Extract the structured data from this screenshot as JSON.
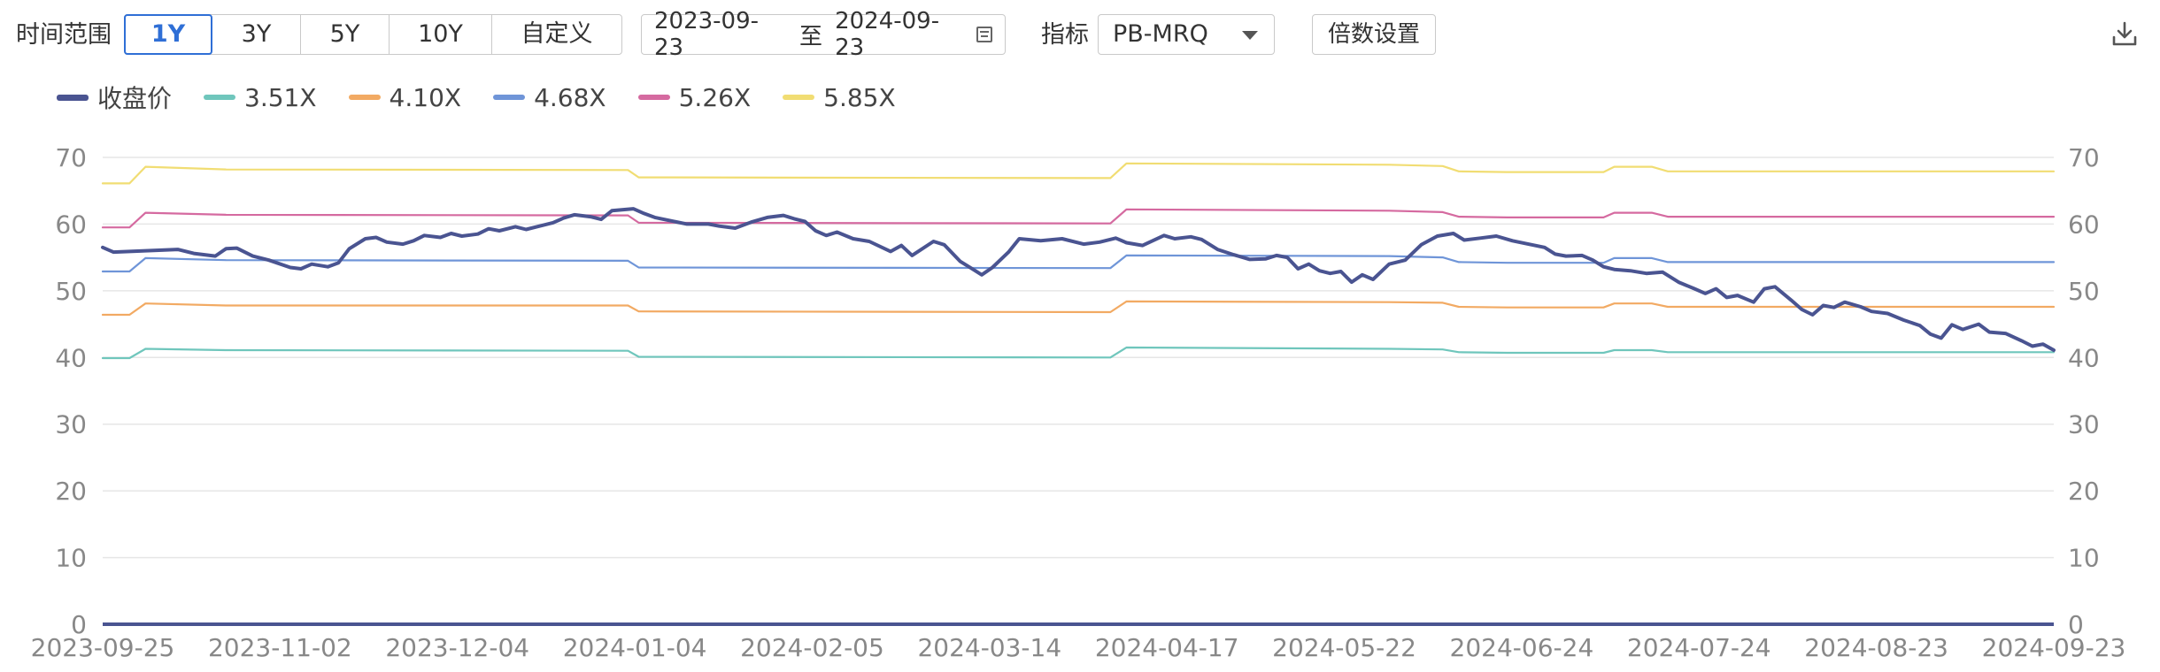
{
  "toolbar": {
    "range_label": "时间范围",
    "ranges": [
      "1Y",
      "3Y",
      "5Y",
      "10Y",
      "自定义"
    ],
    "active_range": "1Y",
    "date_start": "2023-09-23",
    "date_sep": "至",
    "date_end": "2024-09-23",
    "metric_label": "指标",
    "metric_value": "PB-MRQ",
    "multiple_button": "倍数设置"
  },
  "colors": {
    "close": "#4a5491",
    "m351": "#6fc6bc",
    "m410": "#f2aa63",
    "m468": "#6f95d8",
    "m526": "#d56aa0",
    "m585": "#f1dd73",
    "grid": "#e6e6e6",
    "axis": "#4a5491",
    "tick": "#888888"
  },
  "chart_data": {
    "type": "line",
    "x_start": "2023-09-25",
    "x_end": "2024-09-23",
    "x_ticks": [
      "2023-09-25",
      "2023-11-02",
      "2023-12-04",
      "2024-01-04",
      "2024-02-05",
      "2024-03-14",
      "2024-04-17",
      "2024-05-22",
      "2024-06-24",
      "2024-07-24",
      "2024-08-23",
      "2024-09-23"
    ],
    "ylim": [
      0,
      70
    ],
    "y_ticks": [
      0,
      10,
      20,
      30,
      40,
      50,
      60,
      70
    ],
    "legend_position": "top-left",
    "grid": true,
    "series": [
      {
        "name": "收盘价",
        "color_key": "close",
        "width": 4,
        "points": [
          [
            "2023-09-25",
            56.5
          ],
          [
            "2023-09-27",
            55.8
          ],
          [
            "2023-10-09",
            56.2
          ],
          [
            "2023-10-12",
            55.6
          ],
          [
            "2023-10-16",
            55.2
          ],
          [
            "2023-10-18",
            56.3
          ],
          [
            "2023-10-20",
            56.4
          ],
          [
            "2023-10-23",
            55.2
          ],
          [
            "2023-10-26",
            54.6
          ],
          [
            "2023-10-30",
            53.5
          ],
          [
            "2023-11-01",
            53.3
          ],
          [
            "2023-11-03",
            54.0
          ],
          [
            "2023-11-06",
            53.6
          ],
          [
            "2023-11-08",
            54.2
          ],
          [
            "2023-11-10",
            56.3
          ],
          [
            "2023-11-13",
            57.8
          ],
          [
            "2023-11-15",
            58.0
          ],
          [
            "2023-11-17",
            57.3
          ],
          [
            "2023-11-20",
            57.0
          ],
          [
            "2023-11-22",
            57.5
          ],
          [
            "2023-11-24",
            58.3
          ],
          [
            "2023-11-27",
            58.0
          ],
          [
            "2023-11-29",
            58.6
          ],
          [
            "2023-12-01",
            58.2
          ],
          [
            "2023-12-04",
            58.5
          ],
          [
            "2023-12-06",
            59.3
          ],
          [
            "2023-12-08",
            59.0
          ],
          [
            "2023-12-11",
            59.6
          ],
          [
            "2023-12-13",
            59.2
          ],
          [
            "2023-12-15",
            59.6
          ],
          [
            "2023-12-18",
            60.2
          ],
          [
            "2023-12-20",
            60.9
          ],
          [
            "2023-12-22",
            61.4
          ],
          [
            "2023-12-25",
            61.1
          ],
          [
            "2023-12-27",
            60.7
          ],
          [
            "2023-12-29",
            62.0
          ],
          [
            "2024-01-02",
            62.3
          ],
          [
            "2024-01-04",
            61.6
          ],
          [
            "2024-01-06",
            61.0
          ],
          [
            "2024-01-09",
            60.5
          ],
          [
            "2024-01-12",
            60.0
          ],
          [
            "2024-01-16",
            60.0
          ],
          [
            "2024-01-18",
            59.7
          ],
          [
            "2024-01-21",
            59.4
          ],
          [
            "2024-01-24",
            60.3
          ],
          [
            "2024-01-27",
            61.0
          ],
          [
            "2024-01-30",
            61.3
          ],
          [
            "2024-02-01",
            60.8
          ],
          [
            "2024-02-03",
            60.4
          ],
          [
            "2024-02-05",
            59.0
          ],
          [
            "2024-02-07",
            58.3
          ],
          [
            "2024-02-09",
            58.8
          ],
          [
            "2024-02-12",
            57.8
          ],
          [
            "2024-02-15",
            57.4
          ],
          [
            "2024-02-19",
            55.9
          ],
          [
            "2024-02-21",
            56.8
          ],
          [
            "2024-02-23",
            55.3
          ],
          [
            "2024-02-27",
            57.4
          ],
          [
            "2024-02-29",
            56.9
          ],
          [
            "2024-03-03",
            54.4
          ],
          [
            "2024-03-05",
            53.4
          ],
          [
            "2024-03-07",
            52.4
          ],
          [
            "2024-03-09",
            53.5
          ],
          [
            "2024-03-12",
            55.8
          ],
          [
            "2024-03-14",
            57.8
          ],
          [
            "2024-03-18",
            57.5
          ],
          [
            "2024-03-22",
            57.8
          ],
          [
            "2024-03-26",
            57.0
          ],
          [
            "2024-03-29",
            57.3
          ],
          [
            "2024-04-01",
            57.9
          ],
          [
            "2024-04-03",
            57.2
          ],
          [
            "2024-04-06",
            56.8
          ],
          [
            "2024-04-10",
            58.3
          ],
          [
            "2024-04-12",
            57.8
          ],
          [
            "2024-04-15",
            58.1
          ],
          [
            "2024-04-17",
            57.7
          ],
          [
            "2024-04-20",
            56.2
          ],
          [
            "2024-04-23",
            55.4
          ],
          [
            "2024-04-26",
            54.7
          ],
          [
            "2024-04-29",
            54.8
          ],
          [
            "2024-05-01",
            55.3
          ],
          [
            "2024-05-03",
            55.0
          ],
          [
            "2024-05-05",
            53.3
          ],
          [
            "2024-05-07",
            54.0
          ],
          [
            "2024-05-09",
            53.0
          ],
          [
            "2024-05-11",
            52.6
          ],
          [
            "2024-05-13",
            52.9
          ],
          [
            "2024-05-15",
            51.3
          ],
          [
            "2024-05-17",
            52.4
          ],
          [
            "2024-05-19",
            51.7
          ],
          [
            "2024-05-22",
            54.0
          ],
          [
            "2024-05-25",
            54.6
          ],
          [
            "2024-05-28",
            56.9
          ],
          [
            "2024-05-31",
            58.2
          ],
          [
            "2024-06-03",
            58.6
          ],
          [
            "2024-06-05",
            57.6
          ],
          [
            "2024-06-08",
            57.9
          ],
          [
            "2024-06-11",
            58.2
          ],
          [
            "2024-06-14",
            57.5
          ],
          [
            "2024-06-17",
            57.0
          ],
          [
            "2024-06-20",
            56.5
          ],
          [
            "2024-06-22",
            55.5
          ],
          [
            "2024-06-24",
            55.2
          ],
          [
            "2024-06-27",
            55.3
          ],
          [
            "2024-06-29",
            54.6
          ],
          [
            "2024-07-01",
            53.6
          ],
          [
            "2024-07-03",
            53.2
          ],
          [
            "2024-07-06",
            53.0
          ],
          [
            "2024-07-09",
            52.6
          ],
          [
            "2024-07-12",
            52.8
          ],
          [
            "2024-07-15",
            51.3
          ],
          [
            "2024-07-18",
            50.3
          ],
          [
            "2024-07-20",
            49.6
          ],
          [
            "2024-07-22",
            50.3
          ],
          [
            "2024-07-24",
            49.0
          ],
          [
            "2024-07-26",
            49.3
          ],
          [
            "2024-07-29",
            48.3
          ],
          [
            "2024-07-31",
            50.3
          ],
          [
            "2024-08-02",
            50.6
          ],
          [
            "2024-08-05",
            48.6
          ],
          [
            "2024-08-07",
            47.2
          ],
          [
            "2024-08-09",
            46.4
          ],
          [
            "2024-08-11",
            47.8
          ],
          [
            "2024-08-13",
            47.5
          ],
          [
            "2024-08-15",
            48.3
          ],
          [
            "2024-08-18",
            47.6
          ],
          [
            "2024-08-20",
            46.9
          ],
          [
            "2024-08-23",
            46.6
          ],
          [
            "2024-08-26",
            45.6
          ],
          [
            "2024-08-29",
            44.8
          ],
          [
            "2024-08-31",
            43.5
          ],
          [
            "2024-09-02",
            42.9
          ],
          [
            "2024-09-04",
            44.9
          ],
          [
            "2024-09-06",
            44.2
          ],
          [
            "2024-09-09",
            45.0
          ],
          [
            "2024-09-11",
            43.8
          ],
          [
            "2024-09-14",
            43.6
          ],
          [
            "2024-09-17",
            42.5
          ],
          [
            "2024-09-19",
            41.7
          ],
          [
            "2024-09-21",
            42.0
          ],
          [
            "2024-09-23",
            41.1
          ]
        ]
      },
      {
        "name": "3.51X",
        "color_key": "m351",
        "width": 2.2,
        "points": [
          [
            "2023-09-25",
            39.9
          ],
          [
            "2023-09-30",
            39.9
          ],
          [
            "2023-10-03",
            41.3
          ],
          [
            "2023-10-18",
            41.1
          ],
          [
            "2024-01-01",
            41.0
          ],
          [
            "2024-01-03",
            40.1
          ],
          [
            "2024-03-31",
            40.0
          ],
          [
            "2024-04-03",
            41.5
          ],
          [
            "2024-05-22",
            41.3
          ],
          [
            "2024-06-01",
            41.2
          ],
          [
            "2024-06-04",
            40.8
          ],
          [
            "2024-06-13",
            40.7
          ],
          [
            "2024-07-01",
            40.7
          ],
          [
            "2024-07-03",
            41.1
          ],
          [
            "2024-07-10",
            41.1
          ],
          [
            "2024-07-13",
            40.8
          ],
          [
            "2024-09-23",
            40.8
          ]
        ]
      },
      {
        "name": "4.10X",
        "color_key": "m410",
        "width": 2.2,
        "points": [
          [
            "2023-09-25",
            46.4
          ],
          [
            "2023-09-30",
            46.4
          ],
          [
            "2023-10-03",
            48.1
          ],
          [
            "2023-10-18",
            47.8
          ],
          [
            "2024-01-01",
            47.8
          ],
          [
            "2024-01-03",
            46.9
          ],
          [
            "2024-03-31",
            46.8
          ],
          [
            "2024-04-03",
            48.4
          ],
          [
            "2024-05-22",
            48.3
          ],
          [
            "2024-06-01",
            48.2
          ],
          [
            "2024-06-04",
            47.6
          ],
          [
            "2024-06-13",
            47.5
          ],
          [
            "2024-07-01",
            47.5
          ],
          [
            "2024-07-03",
            48.1
          ],
          [
            "2024-07-10",
            48.1
          ],
          [
            "2024-07-13",
            47.6
          ],
          [
            "2024-09-23",
            47.6
          ]
        ]
      },
      {
        "name": "4.68X",
        "color_key": "m468",
        "width": 2.2,
        "points": [
          [
            "2023-09-25",
            52.9
          ],
          [
            "2023-09-30",
            52.9
          ],
          [
            "2023-10-03",
            54.9
          ],
          [
            "2023-10-18",
            54.6
          ],
          [
            "2024-01-01",
            54.5
          ],
          [
            "2024-01-03",
            53.5
          ],
          [
            "2024-03-31",
            53.4
          ],
          [
            "2024-04-03",
            55.3
          ],
          [
            "2024-05-22",
            55.2
          ],
          [
            "2024-06-01",
            55.0
          ],
          [
            "2024-06-04",
            54.3
          ],
          [
            "2024-06-13",
            54.2
          ],
          [
            "2024-07-01",
            54.2
          ],
          [
            "2024-07-03",
            54.9
          ],
          [
            "2024-07-10",
            54.9
          ],
          [
            "2024-07-13",
            54.3
          ],
          [
            "2024-09-23",
            54.3
          ]
        ]
      },
      {
        "name": "5.26X",
        "color_key": "m526",
        "width": 2.2,
        "points": [
          [
            "2023-09-25",
            59.5
          ],
          [
            "2023-09-30",
            59.5
          ],
          [
            "2023-10-03",
            61.7
          ],
          [
            "2023-10-18",
            61.4
          ],
          [
            "2024-01-01",
            61.3
          ],
          [
            "2024-01-03",
            60.2
          ],
          [
            "2024-03-31",
            60.1
          ],
          [
            "2024-04-03",
            62.2
          ],
          [
            "2024-05-22",
            62.0
          ],
          [
            "2024-06-01",
            61.8
          ],
          [
            "2024-06-04",
            61.1
          ],
          [
            "2024-06-13",
            61.0
          ],
          [
            "2024-07-01",
            61.0
          ],
          [
            "2024-07-03",
            61.7
          ],
          [
            "2024-07-10",
            61.7
          ],
          [
            "2024-07-13",
            61.1
          ],
          [
            "2024-09-23",
            61.1
          ]
        ]
      },
      {
        "name": "5.85X",
        "color_key": "m585",
        "width": 2.2,
        "points": [
          [
            "2023-09-25",
            66.1
          ],
          [
            "2023-09-30",
            66.1
          ],
          [
            "2023-10-03",
            68.6
          ],
          [
            "2023-10-18",
            68.2
          ],
          [
            "2024-01-01",
            68.1
          ],
          [
            "2024-01-03",
            67.0
          ],
          [
            "2024-03-31",
            66.9
          ],
          [
            "2024-04-03",
            69.1
          ],
          [
            "2024-05-22",
            68.9
          ],
          [
            "2024-06-01",
            68.7
          ],
          [
            "2024-06-04",
            67.9
          ],
          [
            "2024-06-13",
            67.8
          ],
          [
            "2024-07-01",
            67.8
          ],
          [
            "2024-07-03",
            68.6
          ],
          [
            "2024-07-10",
            68.6
          ],
          [
            "2024-07-13",
            67.9
          ],
          [
            "2024-09-23",
            67.9
          ]
        ]
      }
    ]
  }
}
